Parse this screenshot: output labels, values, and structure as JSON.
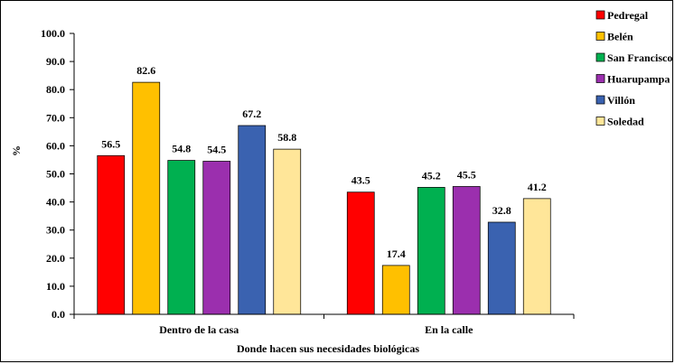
{
  "chart_data": {
    "type": "bar",
    "categories": [
      "Dentro de la casa",
      "En la calle"
    ],
    "series": [
      {
        "name": "Pedregal",
        "values": [
          56.5,
          43.5
        ],
        "color": "#ff0000"
      },
      {
        "name": "Belén",
        "values": [
          82.6,
          17.4
        ],
        "color": "#ffc000"
      },
      {
        "name": "San Francisco",
        "values": [
          54.8,
          45.2
        ],
        "color": "#00b050"
      },
      {
        "name": "Huarupampa",
        "values": [
          54.5,
          45.5
        ],
        "color": "#9b2fae"
      },
      {
        "name": "Villón",
        "values": [
          67.2,
          32.8
        ],
        "color": "#3a62b0"
      },
      {
        "name": "Soledad",
        "values": [
          58.8,
          41.2
        ],
        "color": "#ffe699"
      }
    ],
    "xlabel": "Donde hacen sus necesidades biológicas",
    "ylabel": "%",
    "ylim": [
      0,
      100
    ],
    "yticks": [
      "0.0",
      "10.0",
      "20.0",
      "30.0",
      "40.0",
      "50.0",
      "60.0",
      "70.0",
      "80.0",
      "90.0",
      "100.0"
    ],
    "grid": false,
    "legend": "right"
  }
}
